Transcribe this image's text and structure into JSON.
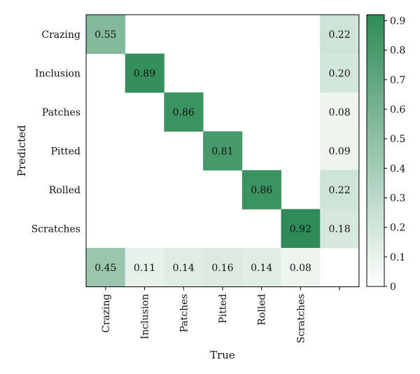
{
  "chart_data": {
    "type": "heatmap",
    "title": "",
    "xlabel": "True",
    "ylabel": "Predicted",
    "x_categories": [
      "Crazing",
      "Inclusion",
      "Patches",
      "Pitted",
      "Rolled",
      "Scratches",
      ""
    ],
    "y_categories": [
      "Crazing",
      "Inclusion",
      "Patches",
      "Pitted",
      "Rolled",
      "Scratches",
      ""
    ],
    "values": [
      [
        0.55,
        null,
        null,
        null,
        null,
        null,
        0.22
      ],
      [
        null,
        0.89,
        null,
        null,
        null,
        null,
        0.2
      ],
      [
        null,
        null,
        0.86,
        null,
        null,
        null,
        0.08
      ],
      [
        null,
        null,
        null,
        0.81,
        null,
        null,
        0.09
      ],
      [
        null,
        null,
        null,
        null,
        0.86,
        null,
        0.22
      ],
      [
        null,
        null,
        null,
        null,
        null,
        0.92,
        0.18
      ],
      [
        0.45,
        0.11,
        0.14,
        0.16,
        0.14,
        0.08,
        null
      ]
    ],
    "colorbar": {
      "min": 0,
      "max": 0.92,
      "ticks": [
        0,
        0.1,
        0.2,
        0.3,
        0.4,
        0.5,
        0.6,
        0.7,
        0.8,
        0.9
      ],
      "tick_labels": [
        "0",
        "0.1",
        "0.2",
        "0.3",
        "0.4",
        "0.5",
        "0.6",
        "0.7",
        "0.8",
        "0.9"
      ],
      "color_low": "#ffffff",
      "color_high": "#2e8b57"
    },
    "grid": false
  }
}
